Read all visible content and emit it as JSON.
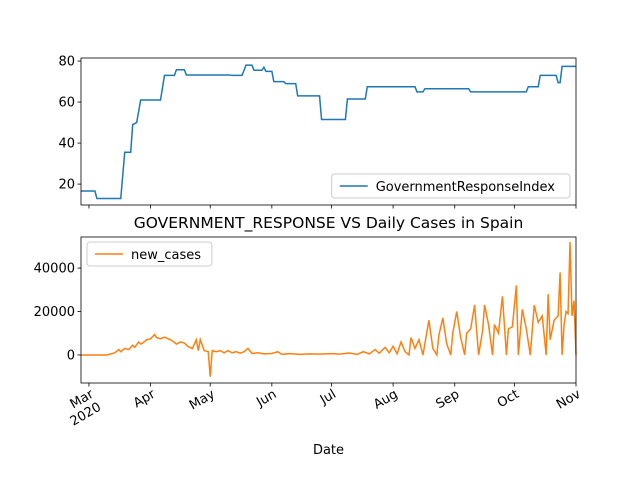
{
  "chart_data": [
    {
      "type": "line",
      "x": [
        "2020-02-26",
        "2020-03-04",
        "2020-03-05",
        "2020-03-17",
        "2020-03-19",
        "2020-03-22",
        "2020-03-23",
        "2020-03-25",
        "2020-03-27",
        "2020-04-06",
        "2020-04-08",
        "2020-04-13",
        "2020-04-14",
        "2020-04-18",
        "2020-04-19",
        "2020-05-11",
        "2020-05-12",
        "2020-05-17",
        "2020-05-19",
        "2020-05-22",
        "2020-05-23",
        "2020-05-27",
        "2020-05-28",
        "2020-05-29",
        "2020-06-01",
        "2020-06-02",
        "2020-06-07",
        "2020-06-08",
        "2020-06-13",
        "2020-06-14",
        "2020-06-25",
        "2020-06-26",
        "2020-07-08",
        "2020-07-09",
        "2020-07-18",
        "2020-07-19",
        "2020-08-12",
        "2020-08-13",
        "2020-08-16",
        "2020-08-17",
        "2020-09-08",
        "2020-09-09",
        "2020-10-07",
        "2020-10-08",
        "2020-10-13",
        "2020-10-14",
        "2020-10-22",
        "2020-10-23",
        "2020-10-24",
        "2020-10-25",
        "2020-11-01"
      ],
      "series": [
        {
          "name": "GovernmentResponseIndex",
          "color": "#1f77b4",
          "values": [
            16.6,
            16.6,
            13,
            13,
            35.5,
            35.5,
            49,
            50,
            61,
            61,
            73,
            73,
            75.8,
            75.8,
            73.2,
            73.2,
            73,
            73,
            78,
            78,
            75.5,
            75.5,
            77,
            75,
            75,
            70,
            70,
            69,
            69,
            63,
            63,
            51.5,
            51.5,
            61.5,
            61.5,
            67.5,
            67.5,
            65,
            65,
            66.5,
            66.5,
            65,
            65,
            67.5,
            67.5,
            73,
            73,
            69.5,
            69.5,
            77.4,
            77.4
          ]
        }
      ],
      "xlim": [
        "2020-02-26",
        "2020-11-01"
      ],
      "xticks": [
        "2020-03-01",
        "2020-04-01",
        "2020-05-01",
        "2020-06-01",
        "2020-07-01",
        "2020-08-01",
        "2020-09-01",
        "2020-10-01",
        "2020-11-01"
      ],
      "ylim": [
        9.8,
        81.5
      ],
      "yticks": [
        20,
        40,
        60,
        80
      ],
      "legend": "lower right"
    },
    {
      "type": "line",
      "title": "GOVERNMENT_RESPONSE VS Daily Cases in Spain",
      "xlabel": "Date",
      "x": [
        "2020-02-26",
        "2020-03-10",
        "2020-03-14",
        "2020-03-16",
        "2020-03-17",
        "2020-03-19",
        "2020-03-21",
        "2020-03-23",
        "2020-03-24",
        "2020-03-26",
        "2020-03-27",
        "2020-03-28",
        "2020-03-30",
        "2020-04-01",
        "2020-04-03",
        "2020-04-04",
        "2020-04-06",
        "2020-04-08",
        "2020-04-12",
        "2020-04-14",
        "2020-04-16",
        "2020-04-18",
        "2020-04-20",
        "2020-04-22",
        "2020-04-24",
        "2020-04-25",
        "2020-04-26",
        "2020-04-28",
        "2020-04-30",
        "2020-05-01",
        "2020-05-02",
        "2020-05-04",
        "2020-05-06",
        "2020-05-08",
        "2020-05-10",
        "2020-05-12",
        "2020-05-14",
        "2020-05-16",
        "2020-05-18",
        "2020-05-20",
        "2020-05-22",
        "2020-05-25",
        "2020-05-28",
        "2020-06-01",
        "2020-06-04",
        "2020-06-06",
        "2020-06-10",
        "2020-06-15",
        "2020-06-20",
        "2020-06-25",
        "2020-07-01",
        "2020-07-05",
        "2020-07-10",
        "2020-07-14",
        "2020-07-17",
        "2020-07-20",
        "2020-07-23",
        "2020-07-25",
        "2020-07-28",
        "2020-07-30",
        "2020-08-01",
        "2020-08-03",
        "2020-08-05",
        "2020-08-07",
        "2020-08-09",
        "2020-08-10",
        "2020-08-12",
        "2020-08-14",
        "2020-08-16",
        "2020-08-19",
        "2020-08-21",
        "2020-08-23",
        "2020-08-24",
        "2020-08-26",
        "2020-08-28",
        "2020-08-30",
        "2020-08-31",
        "2020-09-02",
        "2020-09-04",
        "2020-09-06",
        "2020-09-07",
        "2020-09-09",
        "2020-09-11",
        "2020-09-13",
        "2020-09-15",
        "2020-09-16",
        "2020-09-18",
        "2020-09-20",
        "2020-09-21",
        "2020-09-23",
        "2020-09-25",
        "2020-09-27",
        "2020-09-28",
        "2020-09-30",
        "2020-10-02",
        "2020-10-03",
        "2020-10-05",
        "2020-10-07",
        "2020-10-09",
        "2020-10-11",
        "2020-10-13",
        "2020-10-15",
        "2020-10-17",
        "2020-10-18",
        "2020-10-19",
        "2020-10-21",
        "2020-10-23",
        "2020-10-24",
        "2020-10-25",
        "2020-10-26",
        "2020-10-27",
        "2020-10-28",
        "2020-10-29",
        "2020-10-30",
        "2020-10-31",
        "2020-11-01"
      ],
      "series": [
        {
          "name": "new_cases",
          "color": "#ff7f0e",
          "values": [
            0,
            0,
            1000,
            2500,
            1500,
            3000,
            2500,
            4500,
            3500,
            6000,
            5000,
            5500,
            7000,
            7500,
            9400,
            8000,
            7500,
            8200,
            6500,
            5000,
            6000,
            5500,
            3800,
            3000,
            7000,
            2000,
            7000,
            2000,
            1500,
            -10000,
            2000,
            1500,
            2000,
            1000,
            2000,
            1000,
            1500,
            800,
            1500,
            3000,
            700,
            1000,
            500,
            700,
            1500,
            300,
            600,
            300,
            500,
            400,
            600,
            400,
            900,
            300,
            1500,
            500,
            2500,
            800,
            3500,
            1000,
            4000,
            500,
            6000,
            1500,
            0,
            8000,
            3000,
            7000,
            0,
            16000,
            3000,
            0,
            9000,
            17000,
            5000,
            0,
            10000,
            20000,
            8000,
            0,
            10000,
            12000,
            23000,
            0,
            11000,
            23000,
            14000,
            0,
            14000,
            10000,
            27000,
            0,
            12000,
            13000,
            32000,
            0,
            21000,
            12000,
            0,
            23000,
            15000,
            18000,
            0,
            28000,
            7000,
            16000,
            18000,
            38000,
            0,
            14000,
            20000,
            19000,
            52000,
            18000,
            25000,
            0
          ]
        }
      ],
      "xlim": [
        "2020-02-26",
        "2020-11-01"
      ],
      "xticks": [
        {
          "value": "2020-03-01",
          "label": "Mar\n2020"
        },
        {
          "value": "2020-04-01",
          "label": "Apr"
        },
        {
          "value": "2020-05-01",
          "label": "May"
        },
        {
          "value": "2020-06-01",
          "label": "Jun"
        },
        {
          "value": "2020-07-01",
          "label": "Jul"
        },
        {
          "value": "2020-08-01",
          "label": "Aug"
        },
        {
          "value": "2020-09-01",
          "label": "Sep"
        },
        {
          "value": "2020-10-01",
          "label": "Oct"
        },
        {
          "value": "2020-11-01",
          "label": "Nov"
        }
      ],
      "ylim": [
        -12900,
        54300
      ],
      "yticks": [
        0,
        20000,
        40000
      ],
      "legend": "upper left"
    }
  ]
}
